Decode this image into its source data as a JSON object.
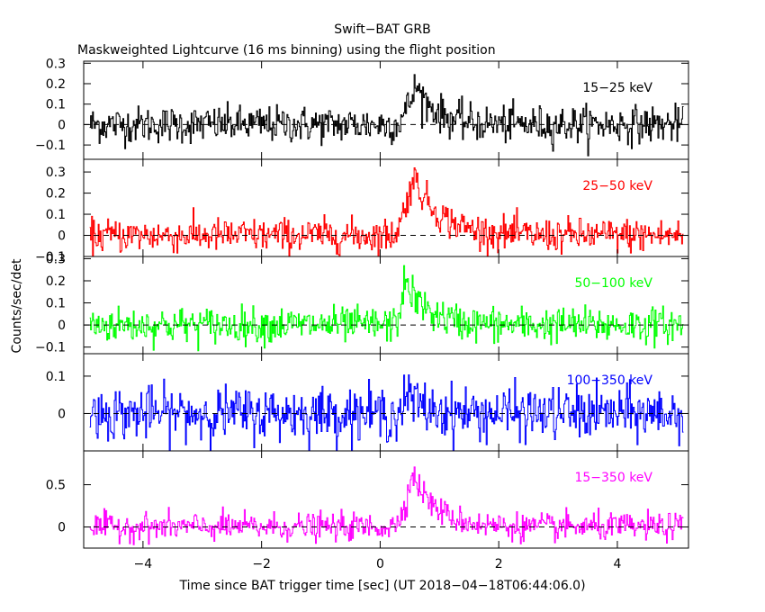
{
  "chart_data": {
    "type": "line",
    "title": "Swift−BAT GRB",
    "subtitle": "Maskweighted Lightcurve (16 ms binning) using the flight position",
    "xlabel": "Time since BAT trigger time [sec] (UT 2018−04−18T06:44:06.0)",
    "ylabel": "Counts/sec/det",
    "xlim": [
      -5,
      5.2
    ],
    "x_ticks": [
      -4,
      -2,
      0,
      2,
      4
    ],
    "x_tick_labels": [
      "−4",
      "−2",
      "0",
      "2",
      "4"
    ],
    "bin_width_sec": 0.016,
    "x_start": -4.9,
    "x_end": 5.1,
    "panels": [
      {
        "name": "15−25 keV",
        "color": "#000000",
        "ylim": [
          -0.17,
          0.31
        ],
        "y_ticks": [
          -0.1,
          0,
          0.1,
          0.2,
          0.3
        ],
        "y_tick_labels": [
          "−0.1",
          "0",
          "0.1",
          "0.2",
          "0.3"
        ],
        "baseline": 0.0,
        "noise_sd": 0.045,
        "pulse": {
          "rise_start": 0.25,
          "peak_time": 0.6,
          "peak_value": 0.19,
          "decay_end": 1.3
        }
      },
      {
        "name": "25−50 keV",
        "color": "#ff0000",
        "ylim": [
          -0.1,
          0.36
        ],
        "y_ticks": [
          -0.1,
          0,
          0.1,
          0.2,
          0.3
        ],
        "y_tick_labels": [
          "−0.1",
          "0",
          "0.1",
          "0.2",
          "0.3"
        ],
        "baseline": 0.0,
        "noise_sd": 0.04,
        "pulse": {
          "rise_start": 0.2,
          "peak_time": 0.55,
          "peak_value": 0.28,
          "decay_end": 1.5
        }
      },
      {
        "name": "50−100 keV",
        "color": "#00ff00",
        "ylim": [
          -0.13,
          0.31
        ],
        "y_ticks": [
          -0.1,
          0,
          0.1,
          0.2,
          0.3
        ],
        "y_tick_labels": [
          "−0.1",
          "0",
          "0.1",
          "0.2",
          "0.3"
        ],
        "baseline": 0.0,
        "noise_sd": 0.04,
        "pulse": {
          "rise_start": 0.25,
          "peak_time": 0.4,
          "peak_value": 0.2,
          "decay_end": 1.2
        }
      },
      {
        "name": "100−350 keV",
        "color": "#0000ff",
        "ylim": [
          -0.1,
          0.16
        ],
        "y_ticks": [
          0,
          0.1
        ],
        "y_tick_labels": [
          "0",
          "0.1"
        ],
        "baseline": 0.0,
        "noise_sd": 0.035,
        "pulse": {
          "rise_start": 0.3,
          "peak_time": 0.45,
          "peak_value": 0.05,
          "decay_end": 1.0
        }
      },
      {
        "name": "15−350 keV",
        "color": "#ff00ff",
        "ylim": [
          -0.25,
          0.9
        ],
        "y_ticks": [
          0,
          0.5
        ],
        "y_tick_labels": [
          "0",
          "0.5"
        ],
        "baseline": 0.0,
        "noise_sd": 0.08,
        "pulse": {
          "rise_start": 0.2,
          "peak_time": 0.55,
          "peak_value": 0.62,
          "decay_end": 1.4
        }
      }
    ]
  }
}
